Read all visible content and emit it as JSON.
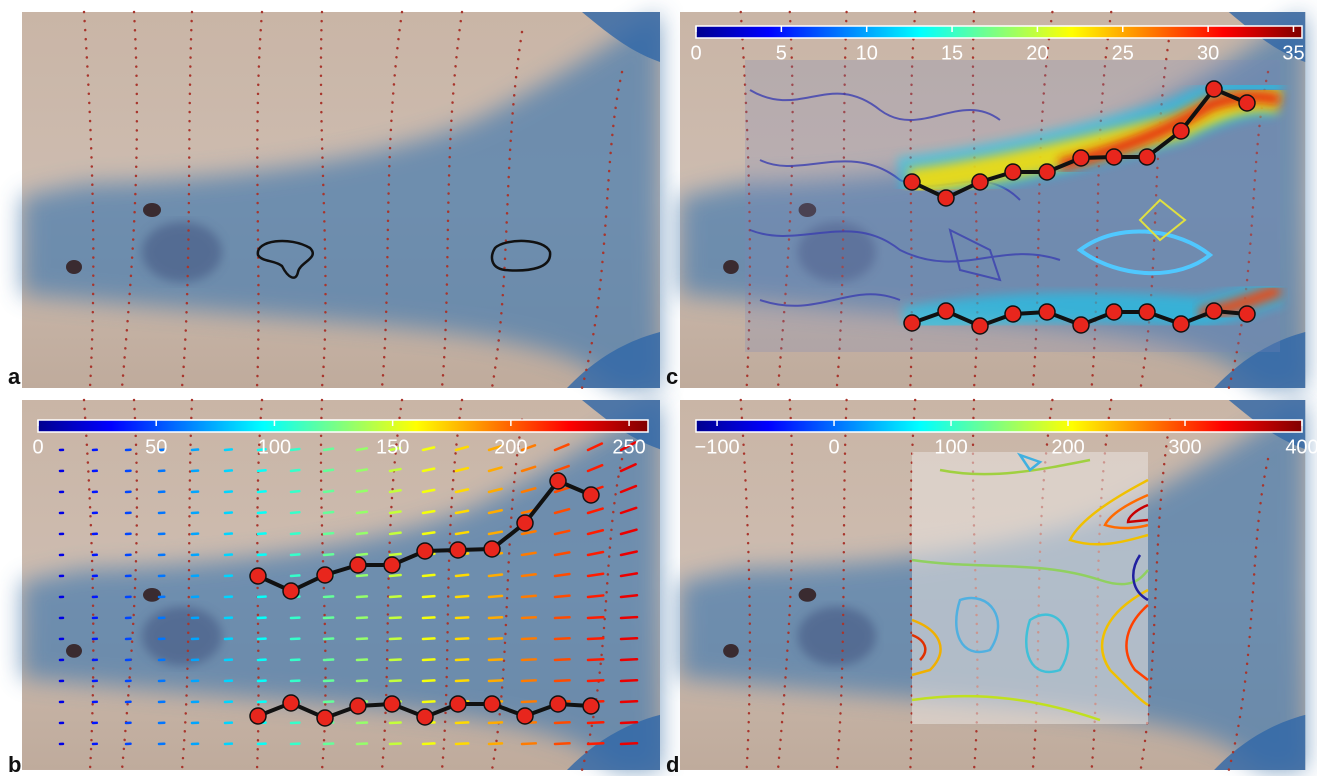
{
  "panels": [
    {
      "label": "a"
    },
    {
      "label": "c",
      "colorbar": {
        "clim": [
          0,
          35.5
        ],
        "ticks": [
          0,
          5,
          10,
          15,
          20,
          25,
          30,
          35
        ]
      }
    },
    {
      "label": "b",
      "colorbar": {
        "clim": [
          0,
          258
        ],
        "ticks": [
          0,
          50,
          100,
          150,
          200,
          250
        ]
      }
    },
    {
      "label": "d",
      "colorbar": {
        "clim": [
          -118,
          400
        ],
        "ticks": [
          {
            "value": -100,
            "label": "−100"
          },
          0,
          100,
          200,
          300,
          400
        ]
      }
    }
  ]
}
